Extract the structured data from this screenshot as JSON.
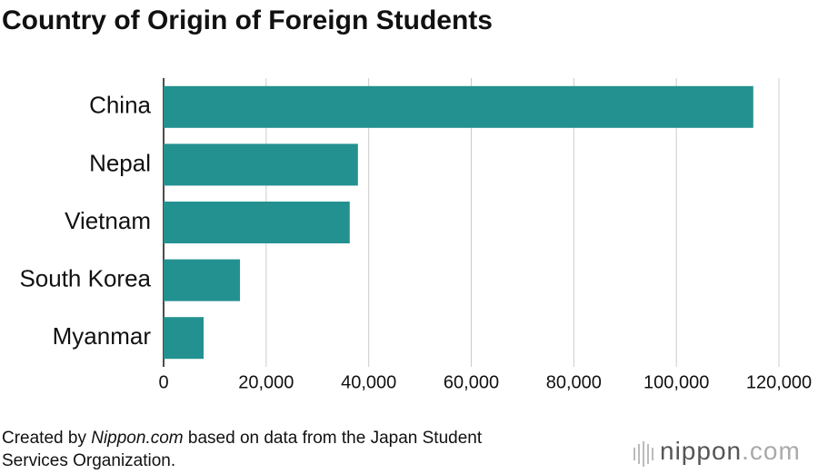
{
  "chart_data": {
    "type": "bar",
    "orientation": "horizontal",
    "title": "Country of Origin of Foreign Students",
    "categories": [
      "China",
      "Nepal",
      "Vietnam",
      "South Korea",
      "Myanmar"
    ],
    "values": [
      115000,
      37900,
      36300,
      14900,
      7800
    ],
    "color": "#23918f",
    "xlim": [
      0,
      120000
    ],
    "xticks": [
      0,
      {
        "value": 20000,
        "label": "20,000"
      },
      {
        "value": 40000,
        "label": "40,000"
      },
      {
        "value": 60000,
        "label": "60,000"
      },
      {
        "value": 80000,
        "label": "80,000"
      },
      {
        "value": 100000,
        "label": "100,000"
      },
      {
        "value": 120000,
        "label": "120,000"
      }
    ],
    "grid": true
  },
  "footer": {
    "source_prefix": "Created by ",
    "source_name": "Nippon.com",
    "source_suffix": " based on data from the Japan Student",
    "source_line2": "Services Organization.",
    "logo_name": "nippon",
    "logo_suffix": ".com"
  }
}
